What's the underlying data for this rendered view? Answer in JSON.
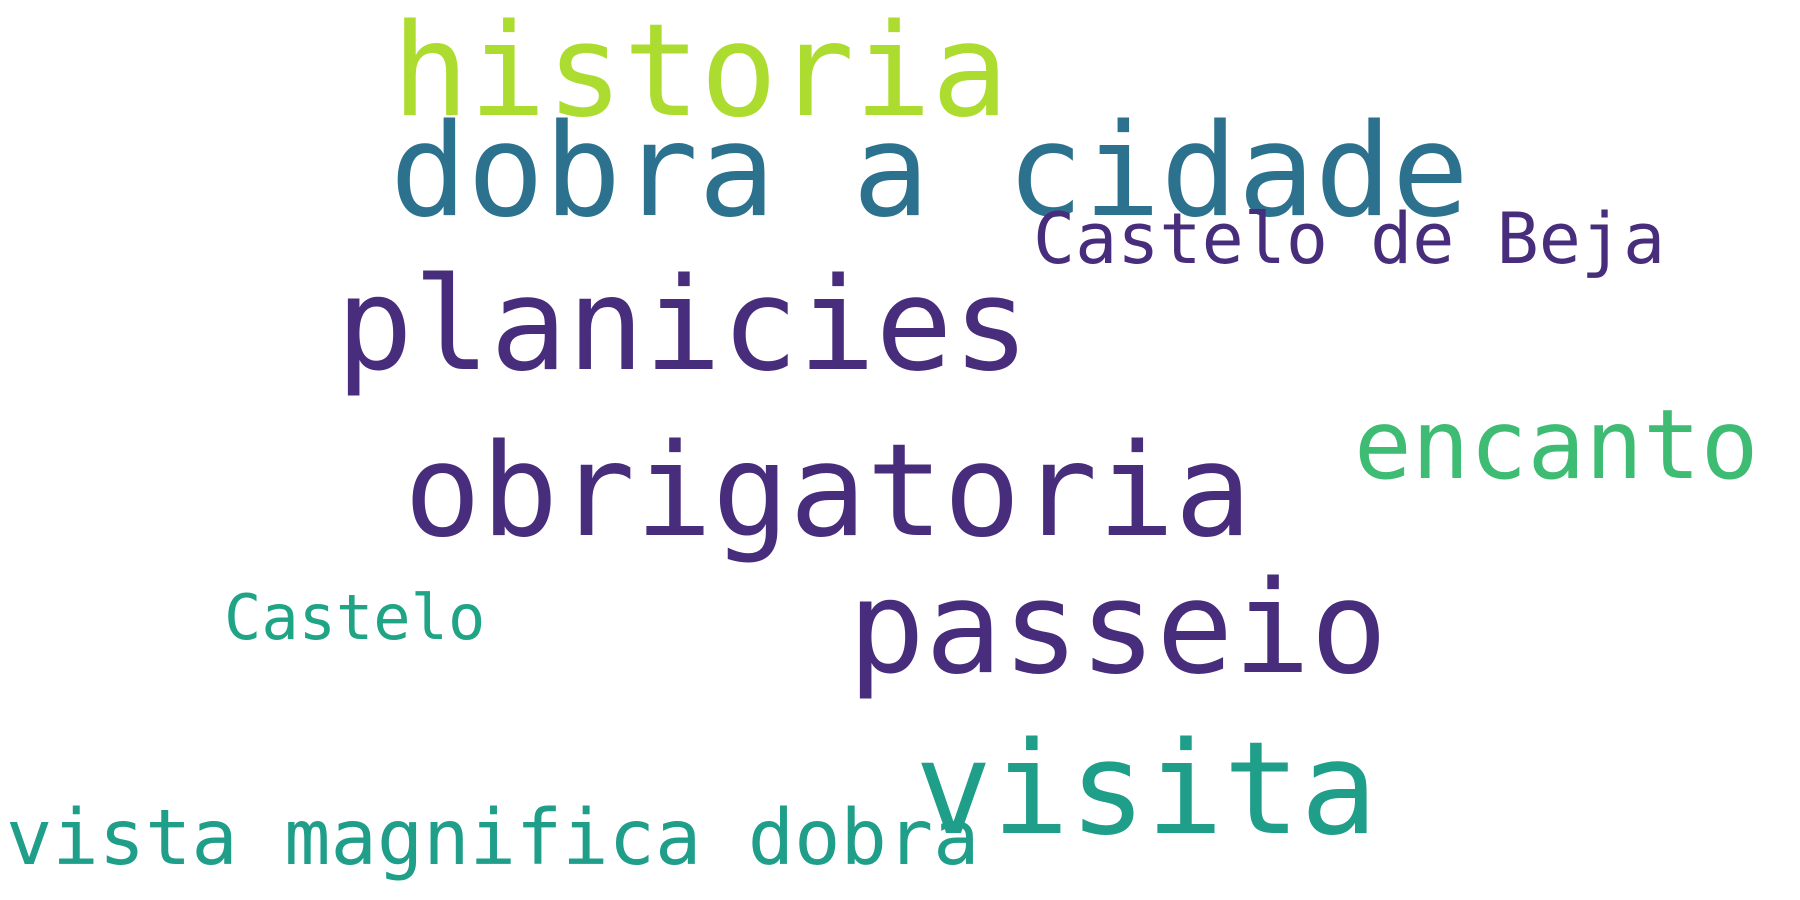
{
  "words": [
    {
      "text": "historia",
      "color": "#addc30"
    },
    {
      "text": "dobra a cidade",
      "color": "#2c728e"
    },
    {
      "text": "Castelo de Beja",
      "color": "#472d7b"
    },
    {
      "text": "planicies",
      "color": "#472d7b"
    },
    {
      "text": "encanto",
      "color": "#3fbc73"
    },
    {
      "text": "obrigatoria",
      "color": "#472d7b"
    },
    {
      "text": "Castelo",
      "color": "#20a486"
    },
    {
      "text": "passeio",
      "color": "#472d7b"
    },
    {
      "text": "visita",
      "color": "#1f9e89"
    },
    {
      "text": "vista magnifica dobra",
      "color": "#1f9e89"
    }
  ]
}
